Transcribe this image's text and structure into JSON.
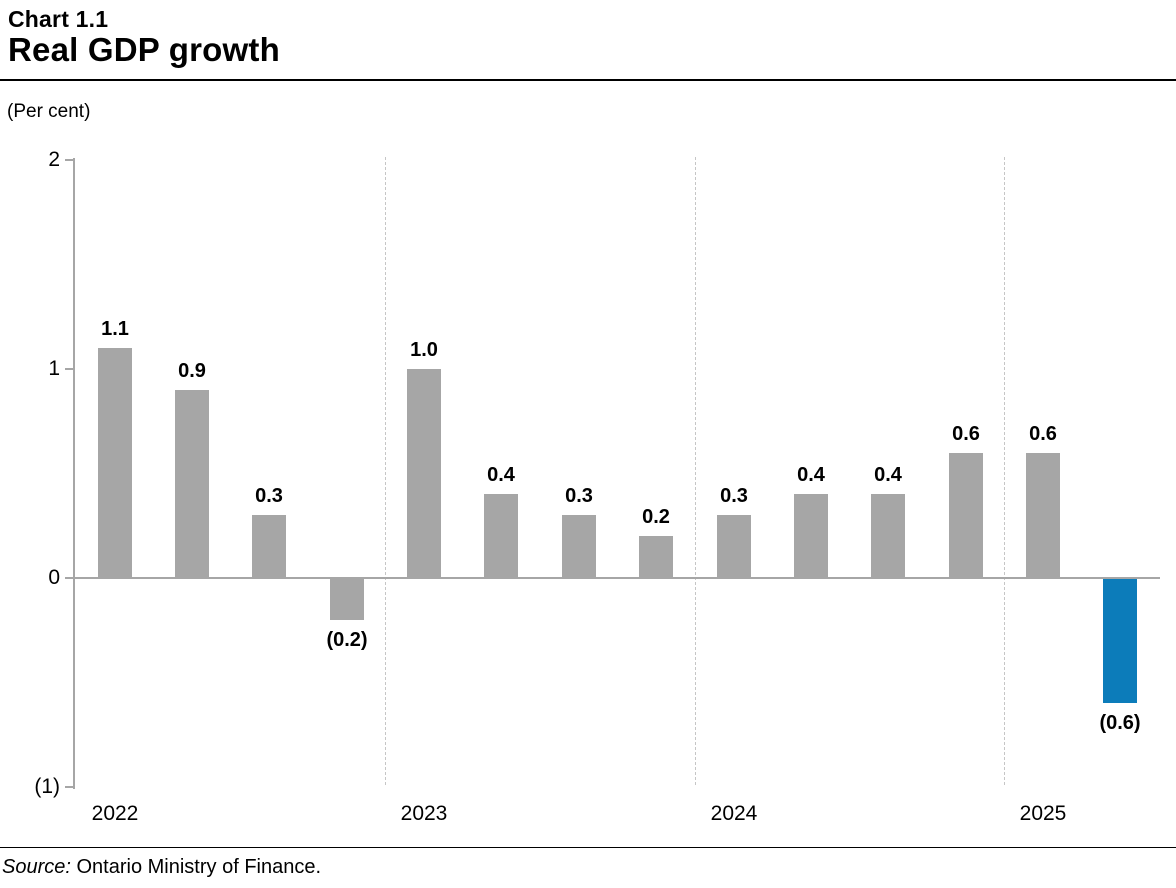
{
  "header": {
    "chart_number": "Chart 1.1",
    "title": "Real GDP growth"
  },
  "footer": {
    "source_label": "Source:",
    "source_text": " Ontario Ministry of Finance."
  },
  "chart_data": {
    "type": "bar",
    "title": "Real GDP growth",
    "chart_number": "Chart 1.1",
    "unit_label": "(Per cent)",
    "xlabel": "",
    "ylabel": "Per cent",
    "ylim": [
      -1,
      2
    ],
    "grid": "dashed vertical separators between years",
    "legend": "none",
    "categories": [
      "2022",
      "2023",
      "2024",
      "2025"
    ],
    "groups": [
      {
        "year": "2022",
        "values": [
          1.1,
          0.9,
          0.3,
          -0.2
        ],
        "labels": [
          "1.1",
          "0.9",
          "0.3",
          "(0.2)"
        ]
      },
      {
        "year": "2023",
        "values": [
          1.0,
          0.4,
          0.3,
          0.2
        ],
        "labels": [
          "1.0",
          "0.4",
          "0.3",
          "0.2"
        ]
      },
      {
        "year": "2024",
        "values": [
          0.3,
          0.4,
          0.4,
          0.6
        ],
        "labels": [
          "0.3",
          "0.4",
          "0.4",
          "0.6"
        ]
      },
      {
        "year": "2025",
        "values": [
          0.6,
          -0.6
        ],
        "labels": [
          "0.6",
          "(0.6)"
        ]
      }
    ],
    "yticks": [
      {
        "value": 2,
        "label": "2"
      },
      {
        "value": 1,
        "label": "1"
      },
      {
        "value": 0,
        "label": "0"
      },
      {
        "value": -1,
        "label": "(1)"
      }
    ],
    "bar_color": "#a6a6a6",
    "highlight_color": "#0c7cba",
    "highlight_bar": {
      "group": 3,
      "index": 1,
      "note": "last bar (2025 Q2 forecast) shown in blue"
    }
  }
}
